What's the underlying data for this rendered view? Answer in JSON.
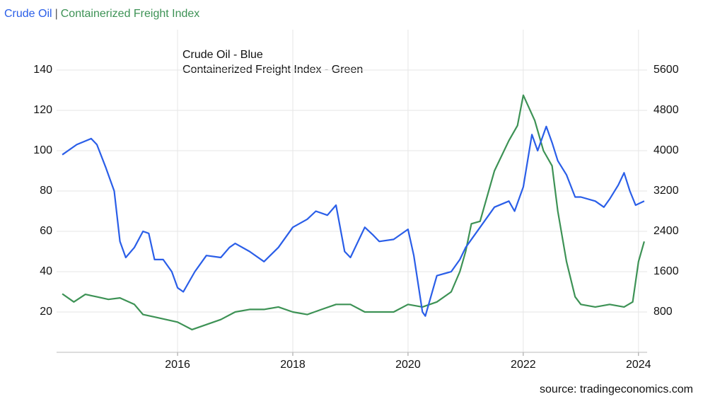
{
  "chart_data": {
    "type": "line",
    "legend_separator": "|",
    "annotations": [
      "Crude Oil - Blue",
      "Containerized Freight Index  -  Green"
    ],
    "source": "source: tradingeconomics.com",
    "xlim": [
      2013.9,
      2024.15
    ],
    "xticks": [
      2016,
      2018,
      2020,
      2022,
      2024
    ],
    "ylim": [
      0,
      160
    ],
    "yticks": [
      20,
      40,
      60,
      80,
      100,
      120,
      140
    ],
    "y2lim": [
      0,
      6400
    ],
    "y2ticks": [
      800,
      1600,
      2400,
      3200,
      4000,
      4800,
      5600
    ],
    "grid": true,
    "series": [
      {
        "name": "Crude Oil",
        "color": "#2a5ee8",
        "axis": "y",
        "x": [
          2014.0,
          2014.25,
          2014.5,
          2014.6,
          2014.75,
          2014.9,
          2015.0,
          2015.1,
          2015.25,
          2015.4,
          2015.5,
          2015.6,
          2015.75,
          2015.9,
          2016.0,
          2016.1,
          2016.3,
          2016.5,
          2016.75,
          2016.9,
          2017.0,
          2017.25,
          2017.5,
          2017.75,
          2018.0,
          2018.25,
          2018.4,
          2018.6,
          2018.75,
          2018.9,
          2019.0,
          2019.25,
          2019.4,
          2019.5,
          2019.75,
          2020.0,
          2020.1,
          2020.25,
          2020.3,
          2020.5,
          2020.75,
          2020.9,
          2021.0,
          2021.25,
          2021.5,
          2021.75,
          2021.85,
          2022.0,
          2022.15,
          2022.25,
          2022.4,
          2022.5,
          2022.6,
          2022.75,
          2022.9,
          2023.0,
          2023.25,
          2023.4,
          2023.5,
          2023.65,
          2023.75,
          2023.85,
          2023.95,
          2024.1
        ],
        "values": [
          98,
          103,
          106,
          103,
          92,
          80,
          55,
          47,
          52,
          60,
          59,
          46,
          46,
          40,
          32,
          30,
          40,
          48,
          47,
          52,
          54,
          50,
          45,
          52,
          62,
          66,
          70,
          68,
          73,
          50,
          47,
          62,
          58,
          55,
          56,
          61,
          48,
          20,
          18,
          38,
          40,
          46,
          52,
          62,
          72,
          75,
          70,
          82,
          108,
          100,
          112,
          104,
          95,
          88,
          77,
          77,
          75,
          72,
          76,
          83,
          89,
          80,
          73,
          75
        ]
      },
      {
        "name": "Containerized Freight Index",
        "color": "#3d9255",
        "axis": "y2",
        "x": [
          2014.0,
          2014.2,
          2014.4,
          2014.6,
          2014.8,
          2015.0,
          2015.25,
          2015.4,
          2015.6,
          2015.8,
          2016.0,
          2016.25,
          2016.5,
          2016.75,
          2017.0,
          2017.25,
          2017.5,
          2017.75,
          2018.0,
          2018.25,
          2018.5,
          2018.75,
          2019.0,
          2019.25,
          2019.5,
          2019.75,
          2020.0,
          2020.25,
          2020.5,
          2020.75,
          2020.9,
          2021.0,
          2021.1,
          2021.25,
          2021.5,
          2021.75,
          2021.9,
          2022.0,
          2022.2,
          2022.35,
          2022.5,
          2022.6,
          2022.75,
          2022.9,
          2023.0,
          2023.25,
          2023.5,
          2023.75,
          2023.9,
          2024.0,
          2024.1
        ],
        "values": [
          1160,
          1000,
          1150,
          1100,
          1050,
          1080,
          950,
          750,
          700,
          650,
          600,
          450,
          550,
          650,
          800,
          850,
          850,
          900,
          800,
          750,
          850,
          950,
          950,
          800,
          800,
          800,
          950,
          900,
          1000,
          1200,
          1600,
          2000,
          2550,
          2600,
          3600,
          4200,
          4500,
          5100,
          4600,
          4000,
          3700,
          2800,
          1800,
          1100,
          950,
          900,
          950,
          900,
          1000,
          1800,
          2200
        ]
      }
    ]
  }
}
